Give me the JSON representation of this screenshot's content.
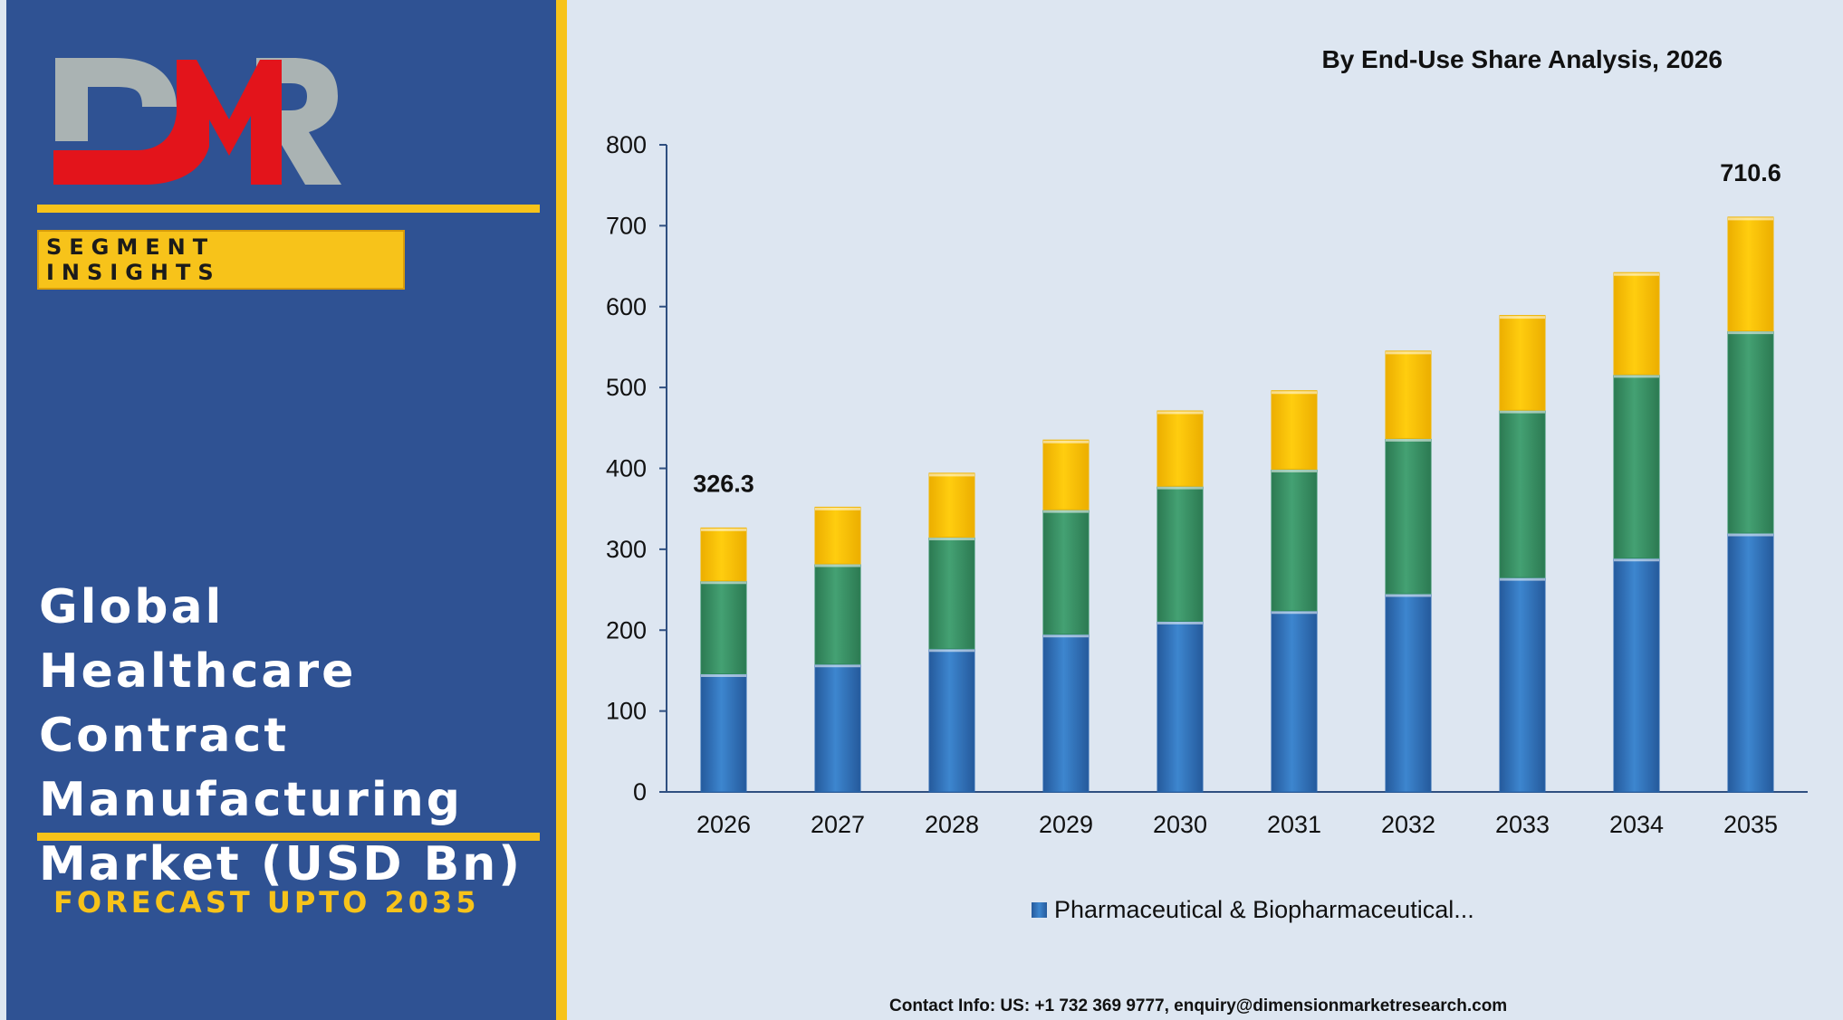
{
  "brand": {
    "logo_text": "DMR"
  },
  "sidebar": {
    "segment_label": "SEGMENT INSIGHTS",
    "market_title": "Global Healthcare\nContract\nManufacturing\nMarket (USD Bn)",
    "forecast": "FORECAST UPTO 2035"
  },
  "colors": {
    "panel": "#2f5293",
    "accent": "#f7c31a",
    "logo_red": "#e3141b",
    "logo_grey": "#aab3b3",
    "series_1": "#3d86cf",
    "series_2": "#3f9a6d",
    "series_3": "#ffc80a"
  },
  "chart_data": {
    "type": "bar",
    "stacked": true,
    "title": "By End-Use Share Analysis, 2026",
    "categories": [
      "2026",
      "2027",
      "2028",
      "2029",
      "2030",
      "2031",
      "2032",
      "2033",
      "2034",
      "2035"
    ],
    "ylim": [
      0,
      800
    ],
    "yticks": [
      0,
      100,
      200,
      300,
      400,
      500,
      600,
      700,
      800
    ],
    "series": [
      {
        "name": "Pharmaceutical & Biopharmaceutical...",
        "values": [
          146,
          158,
          177,
          195,
          211,
          224,
          245,
          265,
          289,
          320
        ]
      },
      {
        "values": [
          115,
          124,
          138,
          154,
          167,
          175,
          192,
          207,
          227,
          250
        ]
      },
      {
        "values": [
          65.3,
          70,
          79,
          86,
          93,
          97,
          108,
          117,
          126,
          140.6
        ]
      }
    ],
    "data_labels": [
      {
        "category": "2026",
        "text": "326.3"
      },
      {
        "category": "2035",
        "text": "710.6"
      }
    ],
    "legend_position": "bottom"
  },
  "footer": {
    "contact": "Contact Info: US: +1 732 369 9777, enquiry@dimensionmarketresearch.com"
  }
}
